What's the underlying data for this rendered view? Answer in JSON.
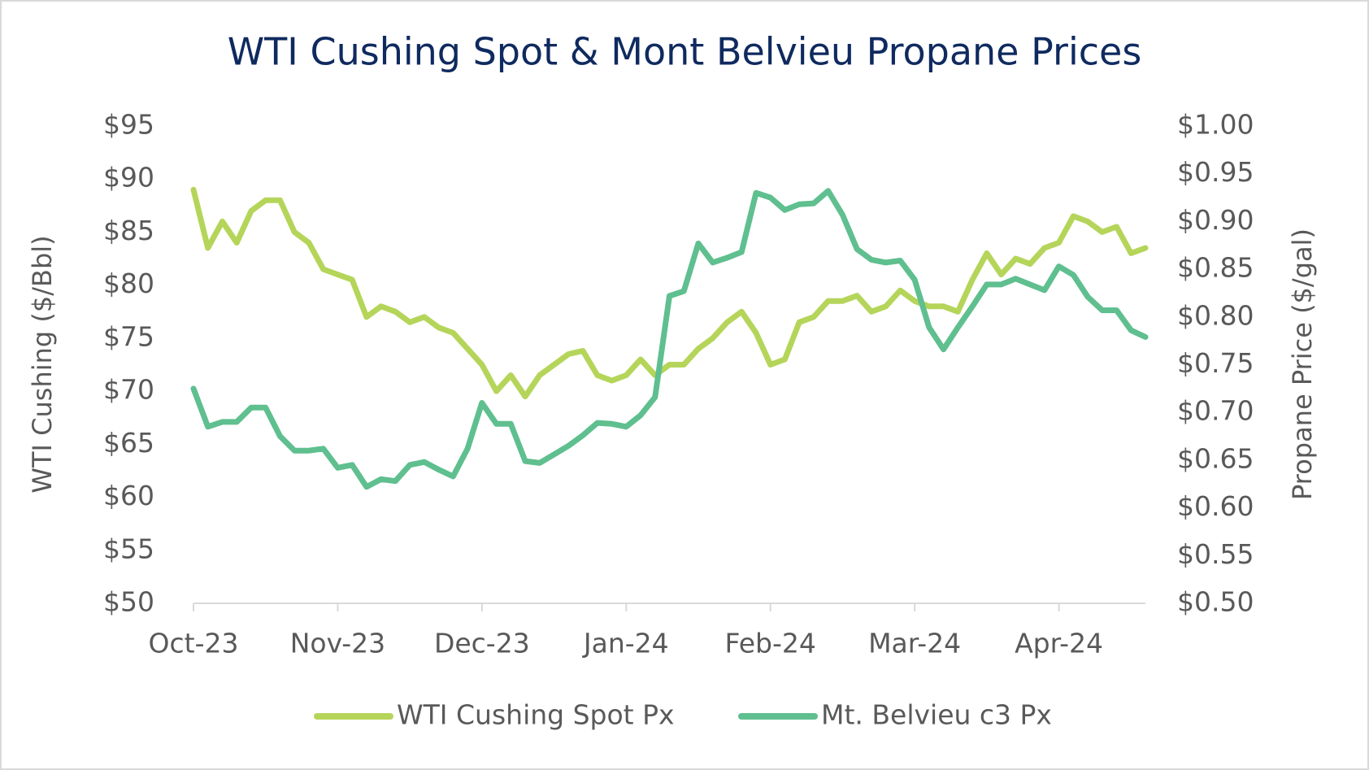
{
  "chart_data": {
    "type": "line",
    "title": "WTI Cushing Spot & Mont Belvieu Propane Prices",
    "y_label": "WTI Cushing ($/Bbl)",
    "y2_label": "Propane Price ($/gal)",
    "categories": [
      "Oct-23",
      null,
      null,
      null,
      null,
      null,
      null,
      null,
      null,
      null,
      "Nov-23",
      null,
      null,
      null,
      null,
      null,
      null,
      null,
      null,
      null,
      "Dec-23",
      null,
      null,
      null,
      null,
      null,
      null,
      null,
      null,
      null,
      "Jan-24",
      null,
      null,
      null,
      null,
      null,
      null,
      null,
      null,
      null,
      "Feb-24",
      null,
      null,
      null,
      null,
      null,
      null,
      null,
      null,
      null,
      "Mar-24",
      null,
      null,
      null,
      null,
      null,
      null,
      null,
      null,
      null,
      "Apr-24",
      null,
      null,
      null,
      null,
      null,
      null
    ],
    "series": [
      {
        "name": "WTI Cushing Spot Px",
        "color": "#b5d55a",
        "axis": "y",
        "values": [
          89,
          83.5,
          86,
          84,
          87,
          88,
          88,
          85,
          84,
          81.5,
          81,
          80.5,
          77,
          78,
          77.5,
          76.5,
          77,
          76,
          75.5,
          74,
          72.5,
          70,
          71.5,
          69.5,
          71.5,
          72.5,
          73.5,
          73.8,
          71.5,
          71,
          71.5,
          73,
          71.5,
          72.5,
          72.5,
          74,
          75,
          76.5,
          77.5,
          75.5,
          72.5,
          73,
          76.5,
          77,
          78.5,
          78.5,
          79,
          77.5,
          78,
          79.5,
          78.5,
          78,
          78,
          77.5,
          80.5,
          83,
          81,
          82.5,
          82,
          83.5,
          84,
          86.5,
          86,
          85,
          85.5,
          83,
          83.5
        ]
      },
      {
        "name": "Mt. Belvieu c3 Px",
        "color": "#5fbf8f",
        "axis": "y2",
        "values": [
          0.725,
          0.685,
          0.69,
          0.69,
          0.705,
          0.705,
          0.675,
          0.66,
          0.66,
          0.662,
          0.642,
          0.645,
          0.622,
          0.63,
          0.628,
          0.645,
          0.648,
          0.64,
          0.633,
          0.662,
          0.71,
          0.688,
          0.688,
          0.649,
          0.647,
          0.656,
          0.665,
          0.676,
          0.689,
          0.688,
          0.685,
          0.697,
          0.716,
          0.822,
          0.827,
          0.877,
          0.857,
          0.862,
          0.868,
          0.93,
          0.925,
          0.912,
          0.918,
          0.919,
          0.932,
          0.907,
          0.871,
          0.86,
          0.857,
          0.859,
          0.839,
          0.789,
          0.766,
          0.789,
          0.811,
          0.834,
          0.834,
          0.84,
          0.834,
          0.828,
          0.853,
          0.844,
          0.821,
          0.807,
          0.807,
          0.786,
          0.779
        ]
      }
    ],
    "ylim": [
      50,
      95
    ],
    "yticks": [
      {
        "value": 50,
        "label": "$50"
      },
      {
        "value": 55,
        "label": "$55"
      },
      {
        "value": 60,
        "label": "$60"
      },
      {
        "value": 65,
        "label": "$65"
      },
      {
        "value": 70,
        "label": "$70"
      },
      {
        "value": 75,
        "label": "$75"
      },
      {
        "value": 80,
        "label": "$80"
      },
      {
        "value": 85,
        "label": "$85"
      },
      {
        "value": 90,
        "label": "$90"
      },
      {
        "value": 95,
        "label": "$95"
      }
    ],
    "y2lim": [
      0.5,
      1.0
    ],
    "y2ticks": [
      {
        "value": 0.5,
        "label": "$0.50"
      },
      {
        "value": 0.55,
        "label": "$0.55"
      },
      {
        "value": 0.6,
        "label": "$0.60"
      },
      {
        "value": 0.65,
        "label": "$0.65"
      },
      {
        "value": 0.7,
        "label": "$0.70"
      },
      {
        "value": 0.75,
        "label": "$0.75"
      },
      {
        "value": 0.8,
        "label": "$0.80"
      },
      {
        "value": 0.85,
        "label": "$0.85"
      },
      {
        "value": 0.9,
        "label": "$0.90"
      },
      {
        "value": 0.95,
        "label": "$0.95"
      },
      {
        "value": 1.0,
        "label": "$1.00"
      }
    ],
    "grid": false,
    "legend": "bottom"
  }
}
